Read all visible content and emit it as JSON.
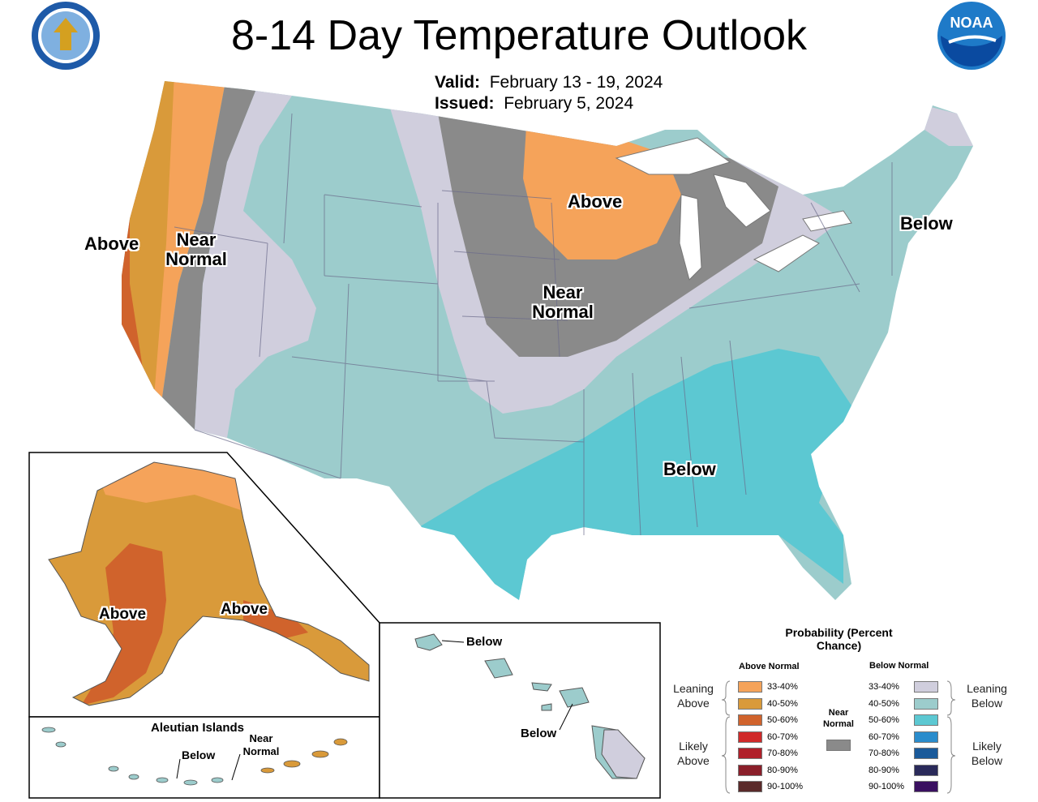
{
  "title": "8-14 Day Temperature Outlook",
  "valid_label": "Valid:",
  "valid_value": "February 13 - 19, 2024",
  "issued_label": "Issued:",
  "issued_value": "February 5, 2024",
  "logos": {
    "left": "department-of-commerce-seal",
    "right": "noaa-logo",
    "noaa_text": "NOAA"
  },
  "map_labels": {
    "west_above": "Above",
    "west_near_normal": "Near Normal",
    "central_near_normal": "Near Normal",
    "midwest_above": "Above",
    "northeast_below": "Below",
    "southeast_below": "Below",
    "alaska_above_1": "Above",
    "alaska_above_2": "Above",
    "hawaii_below_1": "Below",
    "hawaii_below_2": "Below",
    "aleutian_title": "Aleutian Islands",
    "aleutian_below": "Below",
    "aleutian_near_normal": "Near Normal"
  },
  "legend": {
    "title": "Probability (Percent Chance)",
    "above_header": "Above Normal",
    "below_header": "Below Normal",
    "near_normal": "Near Normal",
    "leaning_above": "Leaning Above",
    "likely_above": "Likely Above",
    "leaning_below": "Leaning Below",
    "likely_below": "Likely Below",
    "above": [
      {
        "label": "33-40%",
        "color": "#f5a35a"
      },
      {
        "label": "40-50%",
        "color": "#d99a3a"
      },
      {
        "label": "50-60%",
        "color": "#d0632c"
      },
      {
        "label": "60-70%",
        "color": "#d02a2a"
      },
      {
        "label": "70-80%",
        "color": "#b0202a"
      },
      {
        "label": "80-90%",
        "color": "#8a1f2a"
      },
      {
        "label": "90-100%",
        "color": "#5a2a2a"
      }
    ],
    "below": [
      {
        "label": "33-40%",
        "color": "#d0cedd"
      },
      {
        "label": "40-50%",
        "color": "#9ccccc"
      },
      {
        "label": "50-60%",
        "color": "#5cc8d2"
      },
      {
        "label": "60-70%",
        "color": "#2a8ccc"
      },
      {
        "label": "70-80%",
        "color": "#1a5a9a"
      },
      {
        "label": "80-90%",
        "color": "#2a2a5a"
      },
      {
        "label": "90-100%",
        "color": "#3a1060"
      }
    ],
    "near_normal_color": "#8a8a8a"
  },
  "colors": {
    "leaning_above": "#f5a35a",
    "above_40_50": "#d99a3a",
    "above_50_60": "#d0632c",
    "near_normal": "#8a8a8a",
    "leaning_below": "#d0cedd",
    "below_40_50": "#9ccccc",
    "below_50_60": "#5cc8d2"
  }
}
